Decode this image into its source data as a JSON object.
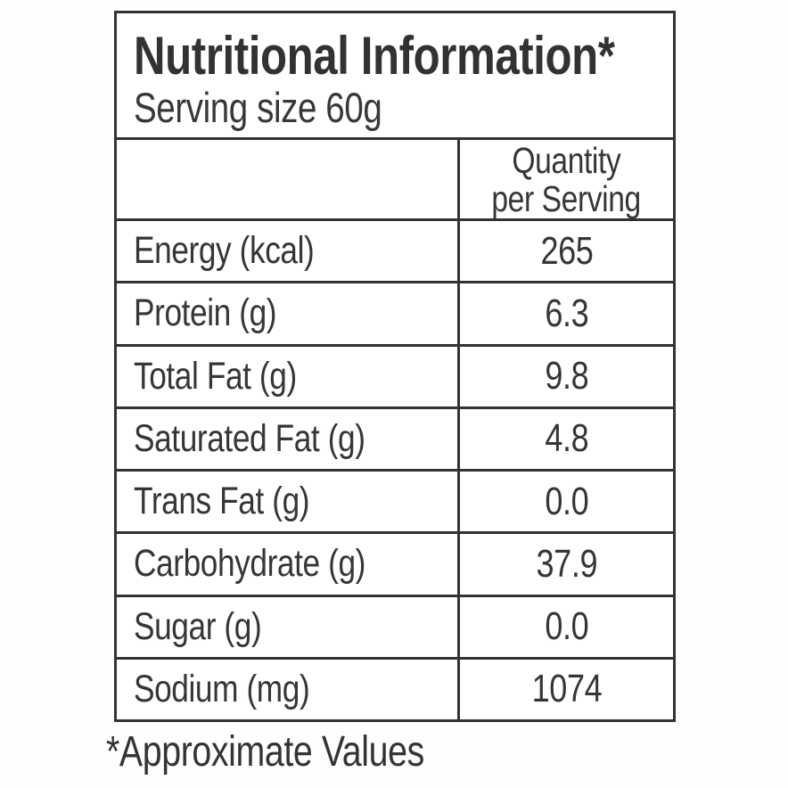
{
  "label": {
    "title": "Nutritional Information*",
    "serving_size": "Serving size 60g",
    "footnote": "*Approximate Values"
  },
  "header": {
    "quantity_line1": "Quantity",
    "quantity_line2": "per Serving"
  },
  "rows": [
    {
      "label": "Energy (kcal)",
      "value": "265"
    },
    {
      "label": "Protein (g)",
      "value": "6.3"
    },
    {
      "label": "Total Fat (g)",
      "value": "9.8"
    },
    {
      "label": "Saturated Fat (g)",
      "value": "4.8"
    },
    {
      "label": "Trans Fat (g)",
      "value": "0.0"
    },
    {
      "label": "Carbohydrate (g)",
      "value": "37.9"
    },
    {
      "label": "Sugar (g)",
      "value": "0.0"
    },
    {
      "label": "Sodium (mg)",
      "value": "1074"
    }
  ],
  "colors": {
    "text": "#333333",
    "border": "#333333",
    "background": "#ffffff"
  }
}
